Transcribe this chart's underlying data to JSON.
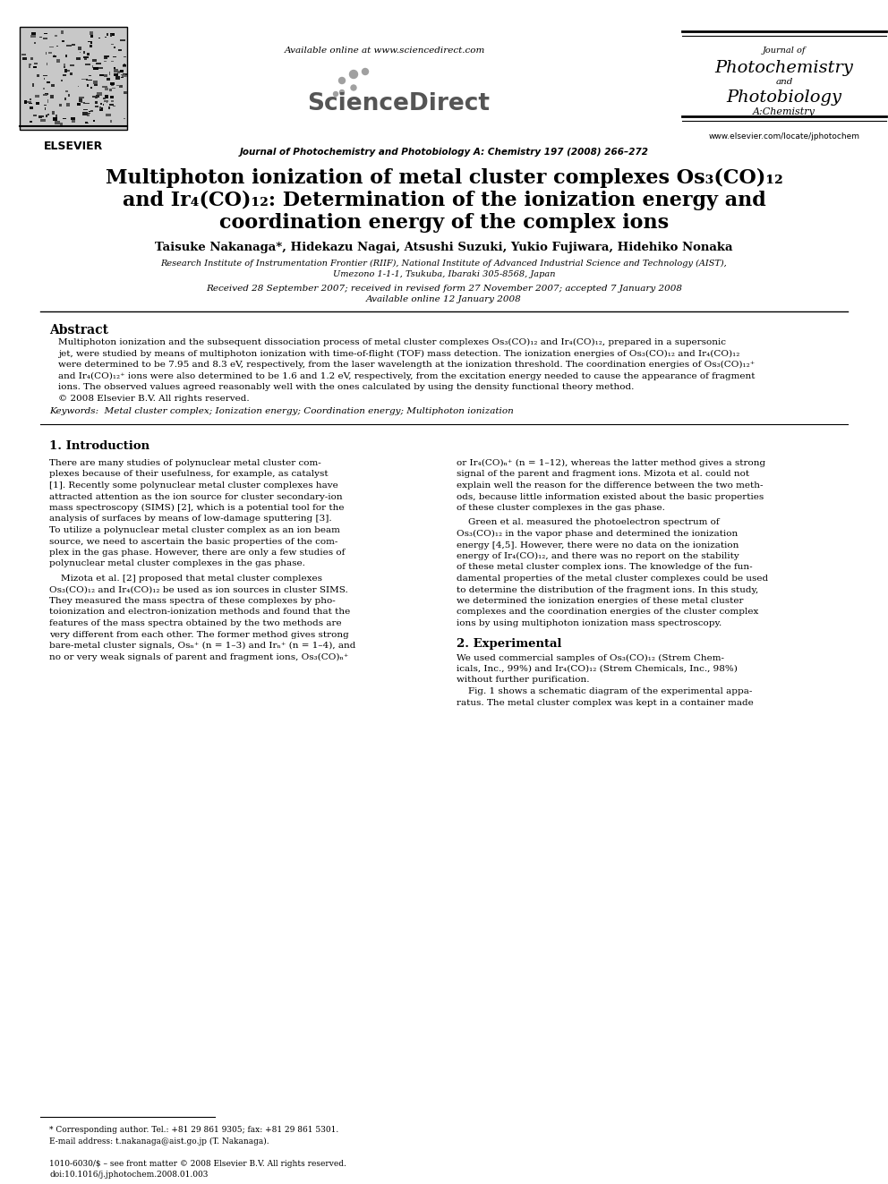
{
  "background_color": "#ffffff",
  "header": {
    "available_online": "Available online at www.sciencedirect.com",
    "journal_name_center": "Journal of Photochemistry and Photobiology A: Chemistry 197 (2008) 266–272",
    "journal_name_right_line1": "Journal of",
    "journal_name_right_line2": "Photochemistry",
    "journal_name_right_line3": "and",
    "journal_name_right_line4": "Photobiology",
    "journal_name_right_line5": "A:Chemistry",
    "website": "www.elsevier.com/locate/jphotochem",
    "elsevier_label": "ELSEVIER"
  },
  "title_line1": "Multiphoton ionization of metal cluster complexes Os₃(CO)₁₂",
  "title_line2": "and Ir₄(CO)₁₂: Determination of the ionization energy and",
  "title_line3": "coordination energy of the complex ions",
  "authors": "Taisuke Nakanaga*, Hidekazu Nagai, Atsushi Suzuki, Yukio Fujiwara, Hidehiko Nonaka",
  "affiliation1": "Research Institute of Instrumentation Frontier (RIIF), National Institute of Advanced Industrial Science and Technology (AIST),",
  "affiliation2": "Umezono 1-1-1, Tsukuba, Ibaraki 305-8568, Japan",
  "received": "Received 28 September 2007; received in revised form 27 November 2007; accepted 7 January 2008",
  "available_online_date": "Available online 12 January 2008",
  "abstract_title": "Abstract",
  "keywords": "Keywords:  Metal cluster complex; Ionization energy; Coordination energy; Multiphoton ionization",
  "section1_title": "1. Introduction",
  "section2_title": "2. Experimental",
  "footnote_star": "* Corresponding author. Tel.: +81 29 861 9305; fax: +81 29 861 5301.",
  "footnote_email": "E-mail address: t.nakanaga@aist.go.jp (T. Nakanaga).",
  "footer_left": "1010-6030/$ – see front matter © 2008 Elsevier B.V. All rights reserved.",
  "footer_doi": "doi:10.1016/j.jphotochem.2008.01.003",
  "abstract_lines": [
    "Multiphoton ionization and the subsequent dissociation process of metal cluster complexes Os₃(CO)₁₂ and Ir₄(CO)₁₂, prepared in a supersonic",
    "jet, were studied by means of multiphoton ionization with time-of-flight (TOF) mass detection. The ionization energies of Os₃(CO)₁₂ and Ir₄(CO)₁₂",
    "were determined to be 7.95 and 8.3 eV, respectively, from the laser wavelength at the ionization threshold. The coordination energies of Os₃(CO)₁₂⁺",
    "and Ir₄(CO)₁₂⁺ ions were also determined to be 1.6 and 1.2 eV, respectively, from the excitation energy needed to cause the appearance of fragment",
    "ions. The observed values agreed reasonably well with the ones calculated by using the density functional theory method.",
    "© 2008 Elsevier B.V. All rights reserved."
  ],
  "intro_col1": [
    "There are many studies of polynuclear metal cluster com-",
    "plexes because of their usefulness, for example, as catalyst",
    "[1]. Recently some polynuclear metal cluster complexes have",
    "attracted attention as the ion source for cluster secondary-ion",
    "mass spectroscopy (SIMS) [2], which is a potential tool for the",
    "analysis of surfaces by means of low-damage sputtering [3].",
    "To utilize a polynuclear metal cluster complex as an ion beam",
    "source, we need to ascertain the basic properties of the com-",
    "plex in the gas phase. However, there are only a few studies of",
    "polynuclear metal cluster complexes in the gas phase."
  ],
  "para2_col1": [
    "    Mizota et al. [2] proposed that metal cluster complexes",
    "Os₃(CO)₁₂ and Ir₄(CO)₁₂ be used as ion sources in cluster SIMS.",
    "They measured the mass spectra of these complexes by pho-",
    "toionization and electron-ionization methods and found that the",
    "features of the mass spectra obtained by the two methods are",
    "very different from each other. The former method gives strong",
    "bare-metal cluster signals, Osₙ⁺ (n = 1–3) and Irₙ⁺ (n = 1–4), and",
    "no or very weak signals of parent and fragment ions, Os₃(CO)ₙ⁺"
  ],
  "intro_col2": [
    "or Ir₄(CO)ₙ⁺ (n = 1–12), whereas the latter method gives a strong",
    "signal of the parent and fragment ions. Mizota et al. could not",
    "explain well the reason for the difference between the two meth-",
    "ods, because little information existed about the basic properties",
    "of these cluster complexes in the gas phase."
  ],
  "para2_col2": [
    "    Green et al. measured the photoelectron spectrum of",
    "Os₃(CO)₁₂ in the vapor phase and determined the ionization",
    "energy [4,5]. However, there were no data on the ionization",
    "energy of Ir₄(CO)₁₂, and there was no report on the stability",
    "of these metal cluster complex ions. The knowledge of the fun-",
    "damental properties of the metal cluster complexes could be used",
    "to determine the distribution of the fragment ions. In this study,",
    "we determined the ionization energies of these metal cluster",
    "complexes and the coordination energies of the cluster complex",
    "ions by using multiphoton ionization mass spectroscopy."
  ],
  "sec2_col2": [
    "We used commercial samples of Os₃(CO)₁₂ (Strem Chem-",
    "icals, Inc., 99%) and Ir₄(CO)₁₂ (Strem Chemicals, Inc., 98%)",
    "without further purification.",
    "    Fig. 1 shows a schematic diagram of the experimental appa-",
    "ratus. The metal cluster complex was kept in a container made"
  ]
}
